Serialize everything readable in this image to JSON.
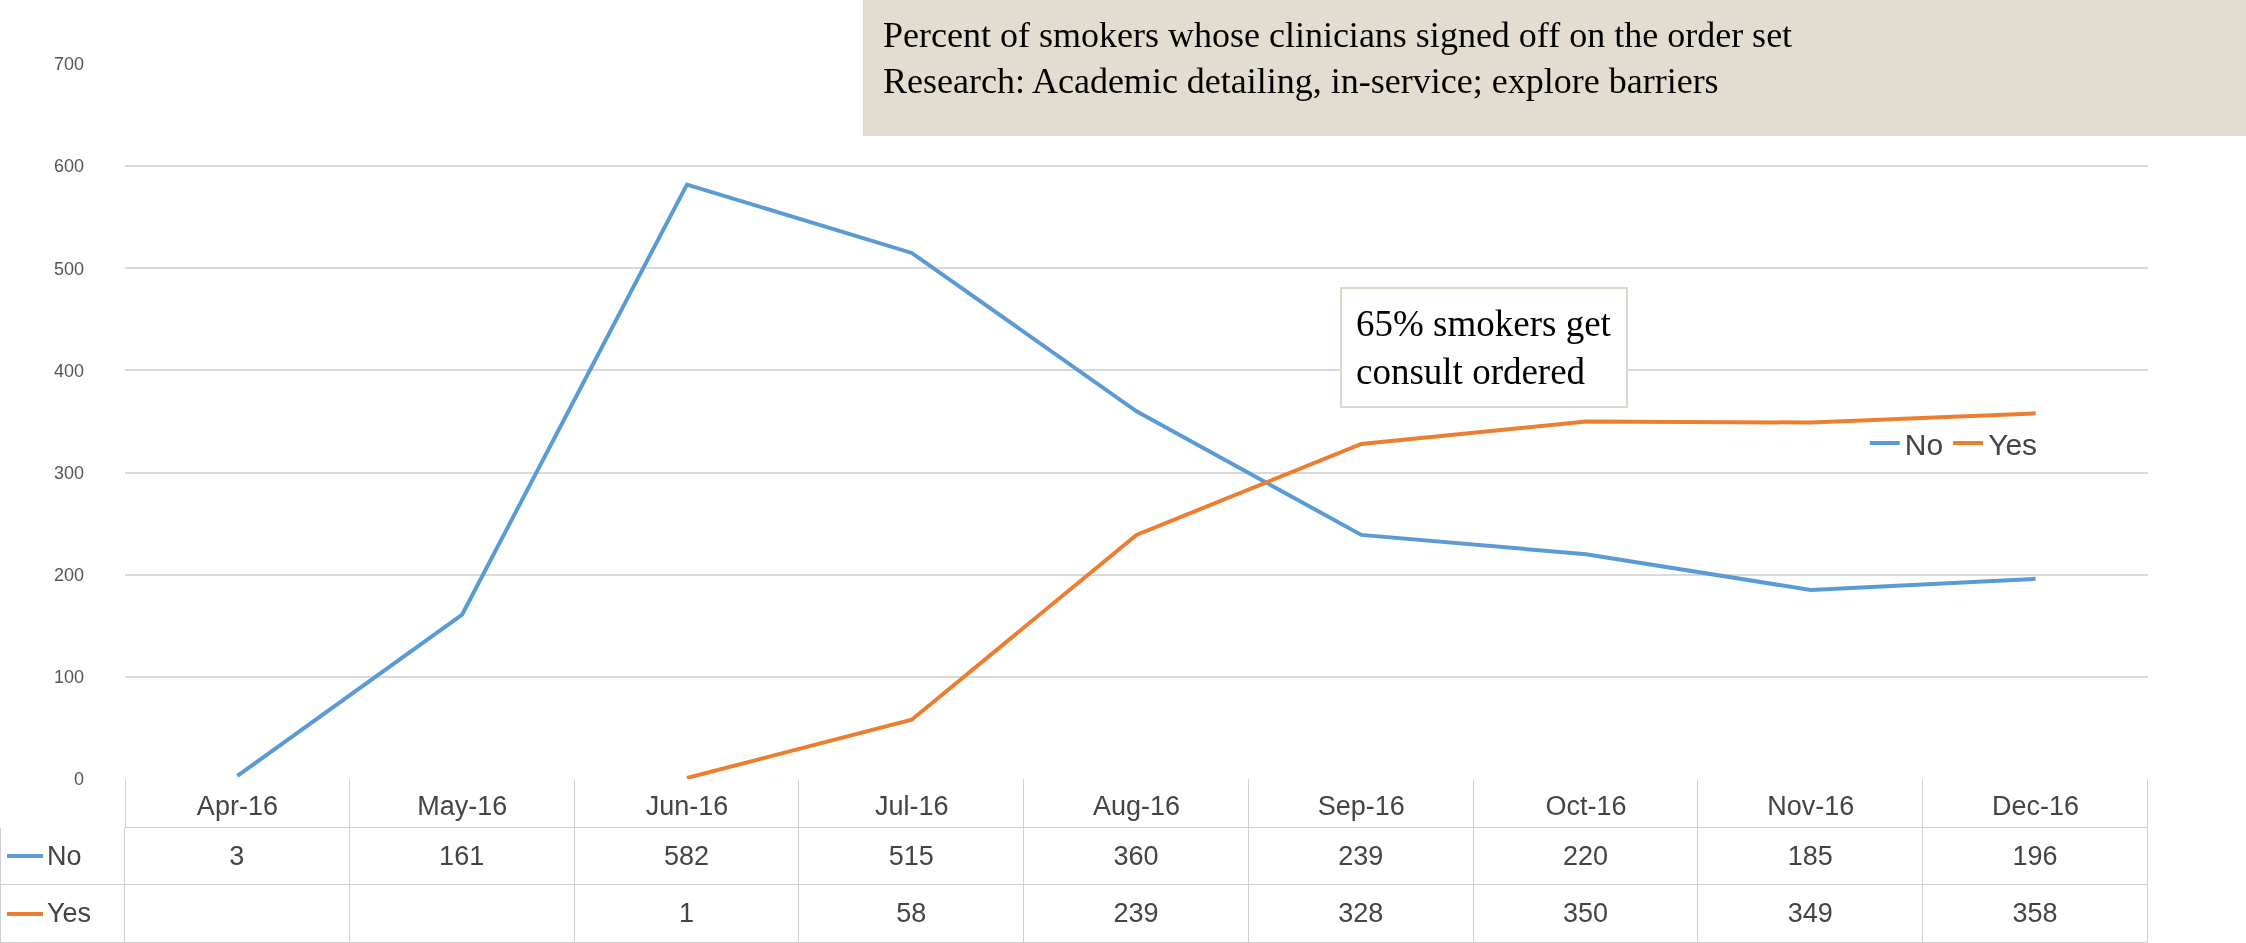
{
  "chart_data": {
    "type": "line",
    "title": "Percent of smokers whose clinicians signed off on the order set",
    "subtitle": "Research: Academic detailing, in-service; explore barriers",
    "annotations": [
      "65% smokers get consult ordered"
    ],
    "categories": [
      "Apr-16",
      "May-16",
      "Jun-16",
      "Jul-16",
      "Aug-16",
      "Sep-16",
      "Oct-16",
      "Nov-16",
      "Dec-16"
    ],
    "series": [
      {
        "name": "No",
        "color": "#5b9bd5",
        "values": [
          3,
          161,
          582,
          515,
          360,
          239,
          220,
          185,
          196
        ]
      },
      {
        "name": "Yes",
        "color": "#ed7d31",
        "values": [
          null,
          null,
          1,
          58,
          239,
          328,
          350,
          349,
          358
        ]
      }
    ],
    "ylim": [
      0,
      700
    ],
    "yticks": [
      0,
      100,
      200,
      300,
      400,
      500,
      600,
      700
    ],
    "grid": "y",
    "legend": "right",
    "marker": "none",
    "line_style": "solid",
    "data_labels": true
  }
}
